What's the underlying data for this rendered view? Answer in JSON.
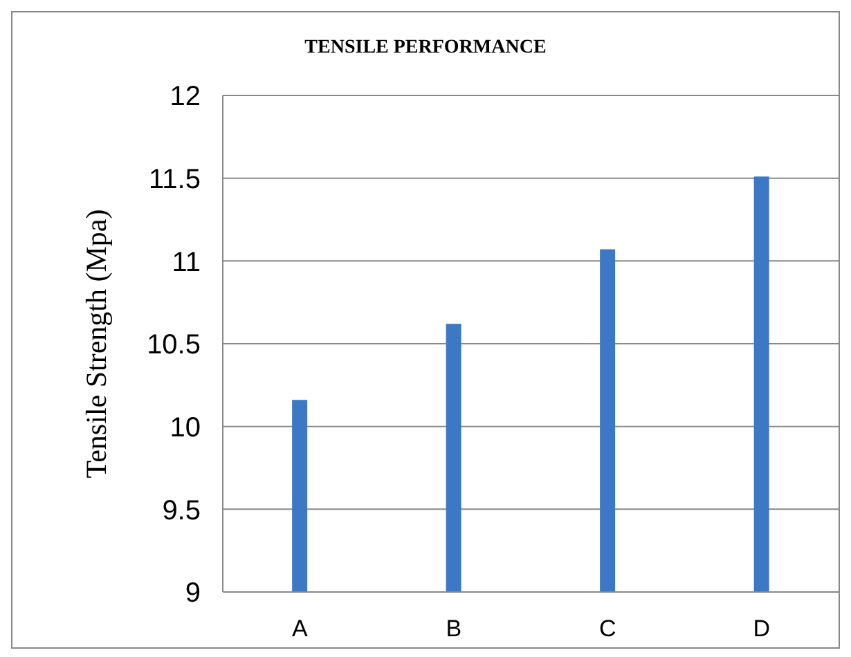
{
  "chart_data": {
    "type": "bar",
    "title": "TENSILE PERFORMANCE",
    "ylabel": "Tensile Strength (Mpa)",
    "categories": [
      "A",
      "B",
      "C",
      "D"
    ],
    "values": [
      10.16,
      10.62,
      11.07,
      11.51
    ],
    "color": "#3d78c4",
    "ylim": [
      9,
      12
    ],
    "yticks": [
      9,
      9.5,
      10,
      10.5,
      11,
      11.5,
      12
    ],
    "grid": "y",
    "legend": false
  }
}
